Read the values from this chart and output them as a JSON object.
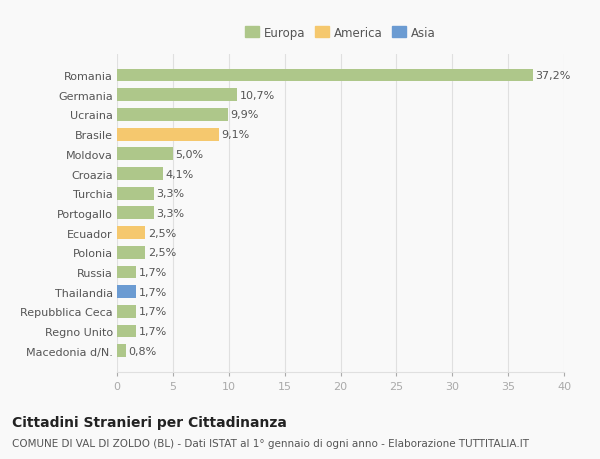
{
  "categories": [
    "Macedonia d/N.",
    "Regno Unito",
    "Repubblica Ceca",
    "Thailandia",
    "Russia",
    "Polonia",
    "Ecuador",
    "Portogallo",
    "Turchia",
    "Croazia",
    "Moldova",
    "Brasile",
    "Ucraina",
    "Germania",
    "Romania"
  ],
  "values": [
    0.8,
    1.7,
    1.7,
    1.7,
    1.7,
    2.5,
    2.5,
    3.3,
    3.3,
    4.1,
    5.0,
    9.1,
    9.9,
    10.7,
    37.2
  ],
  "labels": [
    "0,8%",
    "1,7%",
    "1,7%",
    "1,7%",
    "1,7%",
    "2,5%",
    "2,5%",
    "3,3%",
    "3,3%",
    "4,1%",
    "5,0%",
    "9,1%",
    "9,9%",
    "10,7%",
    "37,2%"
  ],
  "colors": [
    "#aec78a",
    "#aec78a",
    "#aec78a",
    "#6b9bd2",
    "#aec78a",
    "#aec78a",
    "#f5c86e",
    "#aec78a",
    "#aec78a",
    "#aec78a",
    "#aec78a",
    "#f5c86e",
    "#aec78a",
    "#aec78a",
    "#aec78a"
  ],
  "legend": [
    {
      "label": "Europa",
      "color": "#aec78a"
    },
    {
      "label": "America",
      "color": "#f5c86e"
    },
    {
      "label": "Asia",
      "color": "#6b9bd2"
    }
  ],
  "xlim": [
    0,
    40
  ],
  "xticks": [
    0,
    5,
    10,
    15,
    20,
    25,
    30,
    35,
    40
  ],
  "title": "Cittadini Stranieri per Cittadinanza",
  "subtitle": "COMUNE DI VAL DI ZOLDO (BL) - Dati ISTAT al 1° gennaio di ogni anno - Elaborazione TUTTITALIA.IT",
  "bg_color": "#f9f9f9",
  "grid_color": "#e0e0e0",
  "bar_height": 0.65,
  "label_fontsize": 8,
  "tick_fontsize": 8,
  "title_fontsize": 10,
  "subtitle_fontsize": 7.5
}
